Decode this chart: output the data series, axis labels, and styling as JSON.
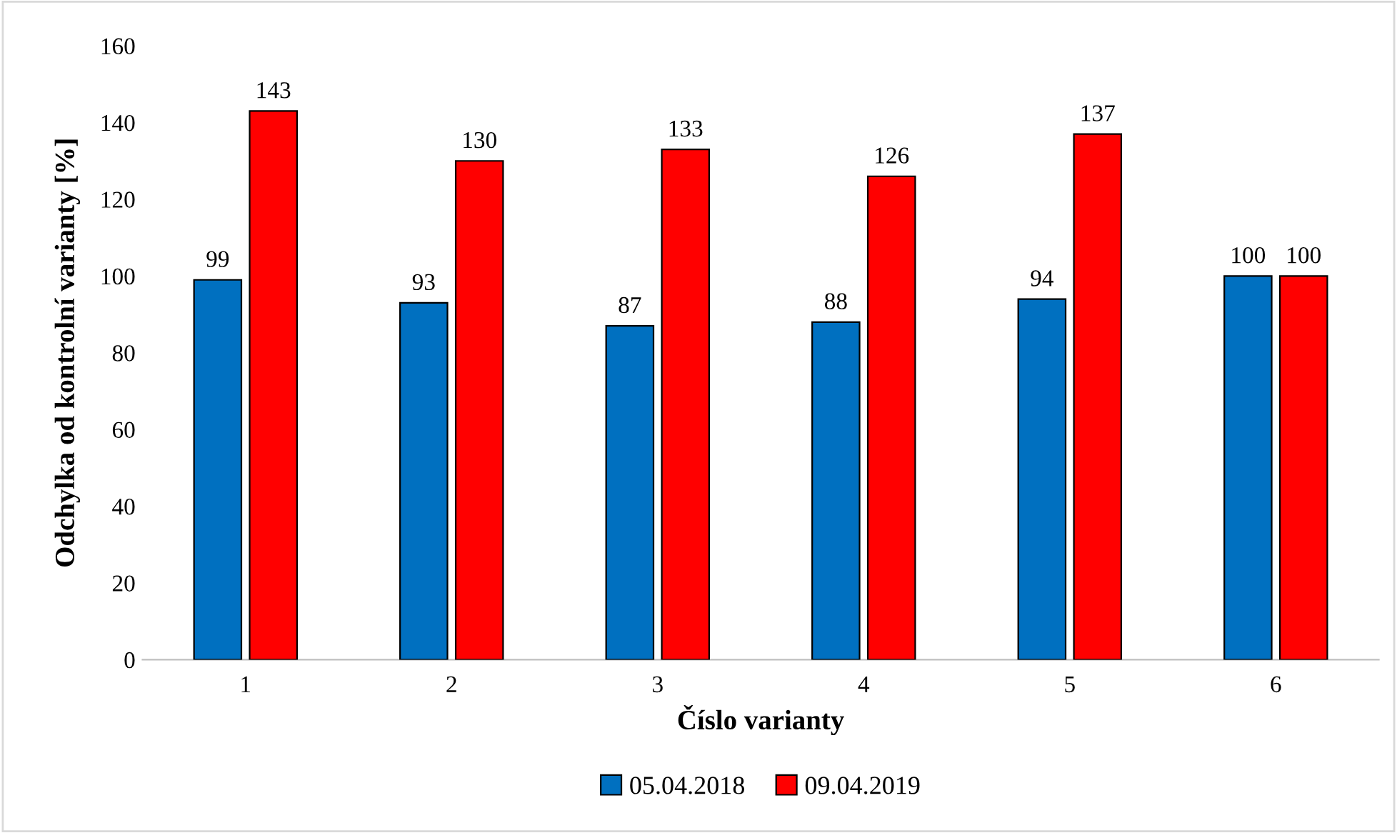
{
  "chart_data": {
    "type": "bar",
    "xlabel": "Číslo varianty",
    "ylabel": "Odchylka od kontrolní varianty [%]",
    "categories": [
      "1",
      "2",
      "3",
      "4",
      "5",
      "6"
    ],
    "series": [
      {
        "name": "05.04.2018",
        "color": "#0070c0",
        "values": [
          99,
          93,
          87,
          88,
          94,
          100
        ]
      },
      {
        "name": "09.04.2019",
        "color": "#ff0000",
        "values": [
          143,
          130,
          133,
          126,
          137,
          100
        ]
      }
    ],
    "ylim": [
      0,
      160
    ],
    "yticks": [
      0,
      20,
      40,
      60,
      80,
      100,
      120,
      140,
      160
    ],
    "data_labels": true,
    "legend": "bottom"
  }
}
